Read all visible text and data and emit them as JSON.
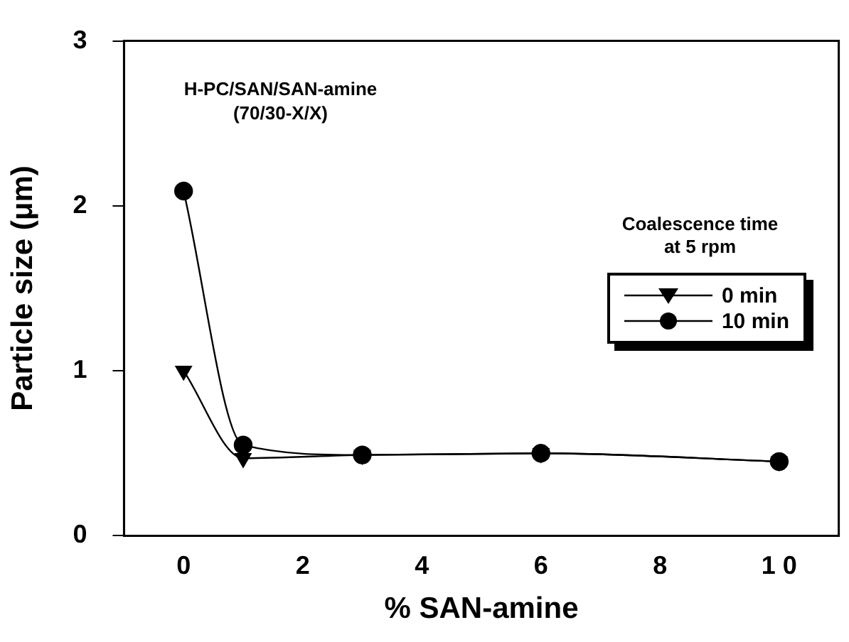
{
  "chart_data": {
    "type": "line",
    "xlabel": "% SAN-amine",
    "ylabel": "Particle size (μm)",
    "legend_title": "Coalescence time\nat 5 rpm",
    "annotations": [
      "H-PC/SAN/SAN-amine\n(70/30-X/X)"
    ],
    "x": [
      0,
      1,
      3,
      6,
      10
    ],
    "series": [
      {
        "name": "0 min",
        "color": "#000000",
        "marker": "triangle",
        "values": [
          1.0,
          0.47,
          0.49,
          0.5,
          0.45
        ]
      },
      {
        "name": "10 min",
        "color": "#000000",
        "marker": "circle",
        "values": [
          2.09,
          0.55,
          0.49,
          0.5,
          0.45
        ]
      }
    ],
    "xlim": [
      -1,
      11
    ],
    "xticks": [
      0,
      2,
      4,
      6,
      8,
      {
        "value": 10,
        "label": "1 0"
      }
    ],
    "ylim": [
      0,
      3
    ],
    "yticks": [
      0,
      1,
      2,
      3
    ],
    "grid": false,
    "legend": "right"
  }
}
